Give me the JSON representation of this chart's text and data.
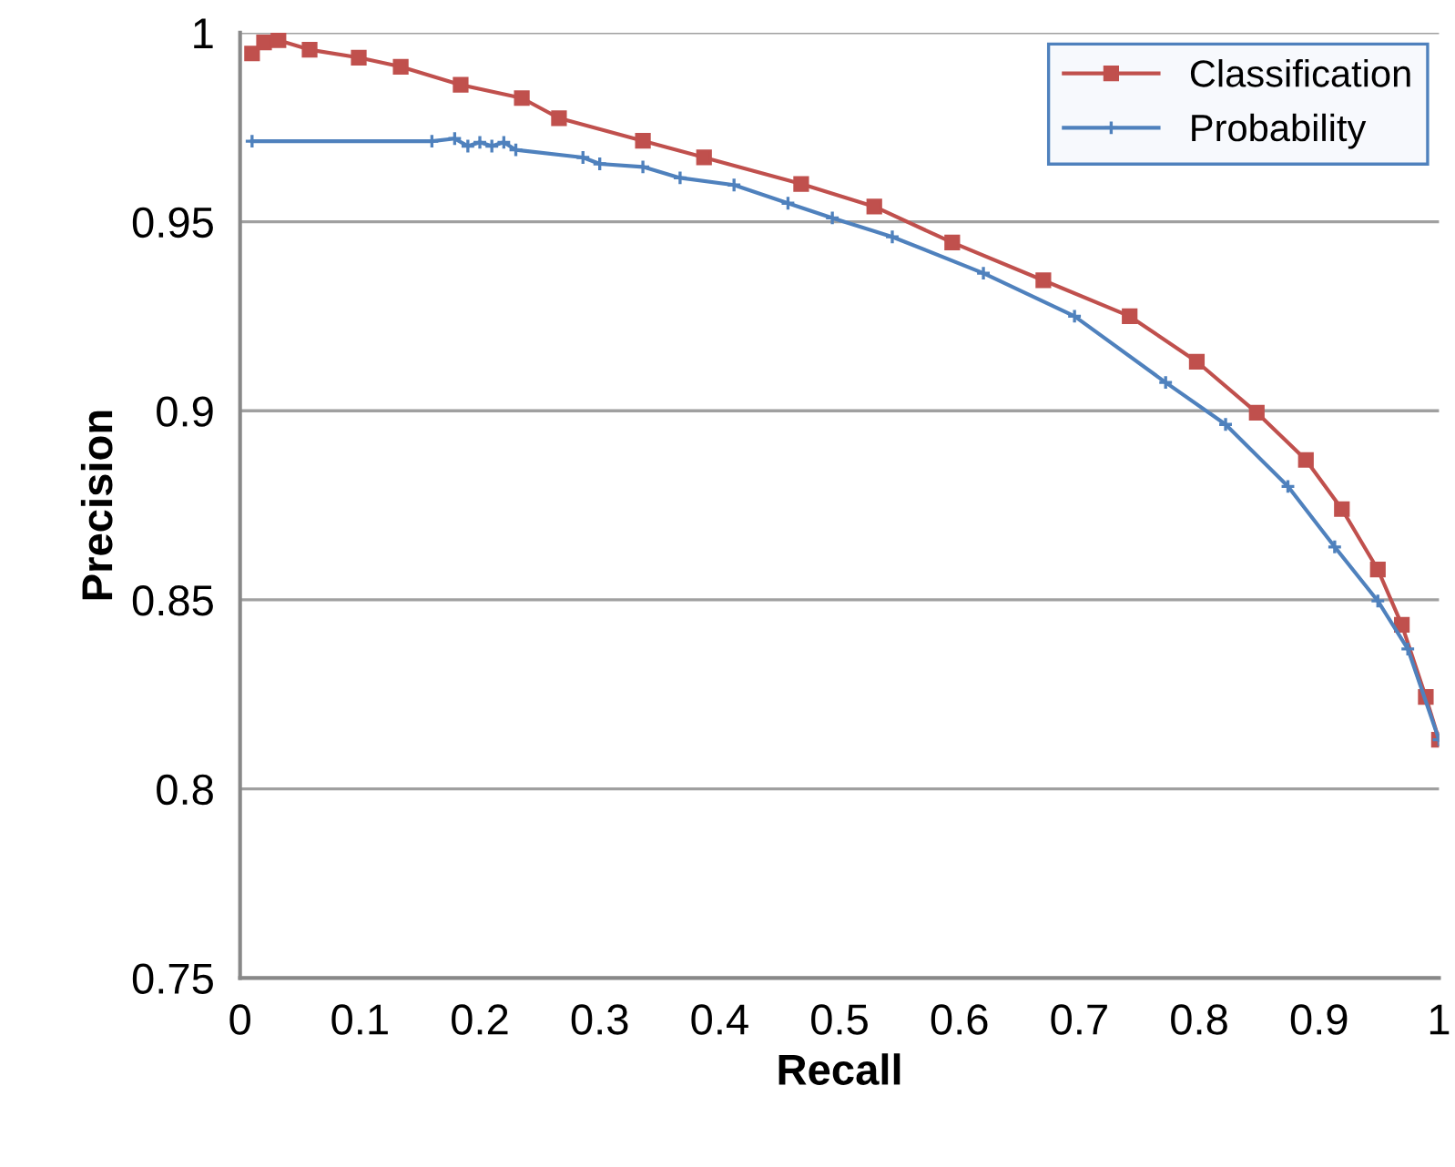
{
  "chart_data": {
    "type": "line",
    "xlabel": "Recall",
    "ylabel": "Precision",
    "xlim": [
      0,
      1
    ],
    "xticks": [
      0,
      0.1,
      0.2,
      0.3,
      0.4,
      0.5,
      0.6,
      0.7,
      0.8,
      0.9,
      1
    ],
    "ylim": [
      0.75,
      1
    ],
    "yticks": [
      0.75,
      0.8,
      0.85,
      0.9,
      0.95,
      1
    ],
    "grid": "y",
    "legend": "top right",
    "series": [
      {
        "name": "Classification",
        "color": "#c0504d",
        "marker": "square",
        "x": [
          0.01,
          0.02,
          0.032,
          0.058,
          0.099,
          0.134,
          0.184,
          0.235,
          0.266,
          0.336,
          0.387,
          0.468,
          0.529,
          0.594,
          0.67,
          0.742,
          0.798,
          0.848,
          0.889,
          0.919,
          0.949,
          0.969,
          0.989,
          1.0
        ],
        "values": [
          0.9945,
          0.9974,
          0.998,
          0.9955,
          0.9934,
          0.991,
          0.9862,
          0.9827,
          0.9774,
          0.9714,
          0.967,
          0.96,
          0.954,
          0.9445,
          0.9345,
          0.925,
          0.913,
          0.8995,
          0.887,
          0.874,
          0.858,
          0.8434,
          0.8243,
          0.813
        ]
      },
      {
        "name": "Probability",
        "color": "#4f81bd",
        "marker": "cross",
        "x": [
          0.01,
          0.16,
          0.179,
          0.19,
          0.2,
          0.21,
          0.22,
          0.23,
          0.286,
          0.3,
          0.336,
          0.367,
          0.412,
          0.457,
          0.494,
          0.544,
          0.62,
          0.696,
          0.772,
          0.822,
          0.874,
          0.913,
          0.949,
          0.974,
          1.0
        ],
        "values": [
          0.9713,
          0.9713,
          0.972,
          0.97,
          0.971,
          0.97,
          0.971,
          0.969,
          0.967,
          0.9653,
          0.9645,
          0.9616,
          0.9597,
          0.9549,
          0.951,
          0.946,
          0.9364,
          0.925,
          0.9075,
          0.8964,
          0.88,
          0.864,
          0.8497,
          0.837,
          0.813
        ]
      }
    ]
  }
}
